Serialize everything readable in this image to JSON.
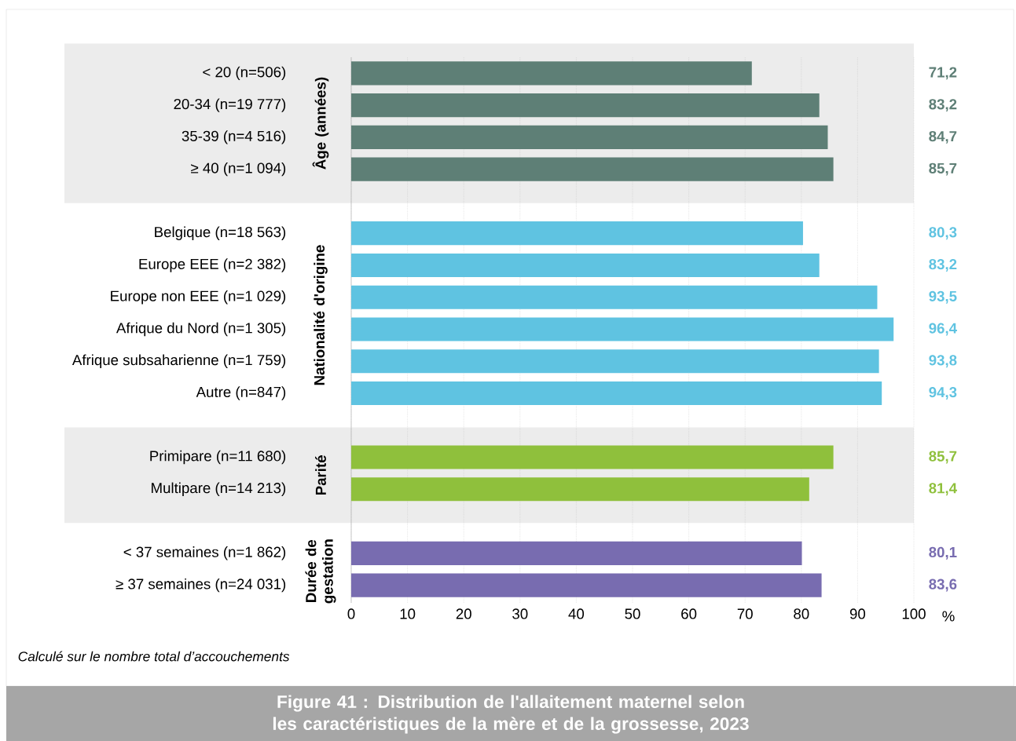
{
  "chart_data": {
    "type": "bar",
    "orientation": "horizontal",
    "title": "Figure 41 : Distribution de l'allaitement maternel selon les caractéristiques de la mère et de la grossesse, 2023",
    "xlabel": "%",
    "categories": [
      "< 20 (n=506)",
      "20-34 (n=19 777)",
      "35-39 (n=4 516)",
      "≥ 40 (n=1 094)",
      "Belgique (n=18 563)",
      "Europe EEE (n=2 382)",
      "Europe non EEE (n=1 029)",
      "Afrique du Nord (n=1 305)",
      "Afrique subsaharienne (n=1 759)",
      "Autre (n=847)",
      "Primipare (n=11 680)",
      "Multipare (n=14 213)",
      "< 37 semaines (n=1 862)",
      "≥ 37 semaines (n=24 031)"
    ],
    "values": [
      71.2,
      83.2,
      84.7,
      85.7,
      80.3,
      83.2,
      93.5,
      96.4,
      93.8,
      94.3,
      85.7,
      81.4,
      80.1,
      83.6
    ],
    "value_labels": [
      "71,2",
      "83,2",
      "84,7",
      "85,7",
      "80,3",
      "83,2",
      "93,5",
      "96,4",
      "93,8",
      "94,3",
      "85,7",
      "81,4",
      "80,1",
      "83,6"
    ],
    "colors": [
      "#5e7f76",
      "#5e7f76",
      "#5e7f76",
      "#5e7f76",
      "#5fc3e1",
      "#5fc3e1",
      "#5fc3e1",
      "#5fc3e1",
      "#5fc3e1",
      "#5fc3e1",
      "#8fc03c",
      "#8fc03c",
      "#786cb0",
      "#786cb0"
    ],
    "xlim": [
      0,
      100
    ],
    "xticks": [
      0,
      10,
      20,
      30,
      40,
      50,
      60,
      70,
      80,
      90,
      100
    ],
    "grid": "x",
    "annotations": [
      "Âge (années)",
      "Nationalité d'origine",
      "Parité",
      "Durée de gestation",
      "Calculé sur le nombre total d’accouchements"
    ]
  }
}
